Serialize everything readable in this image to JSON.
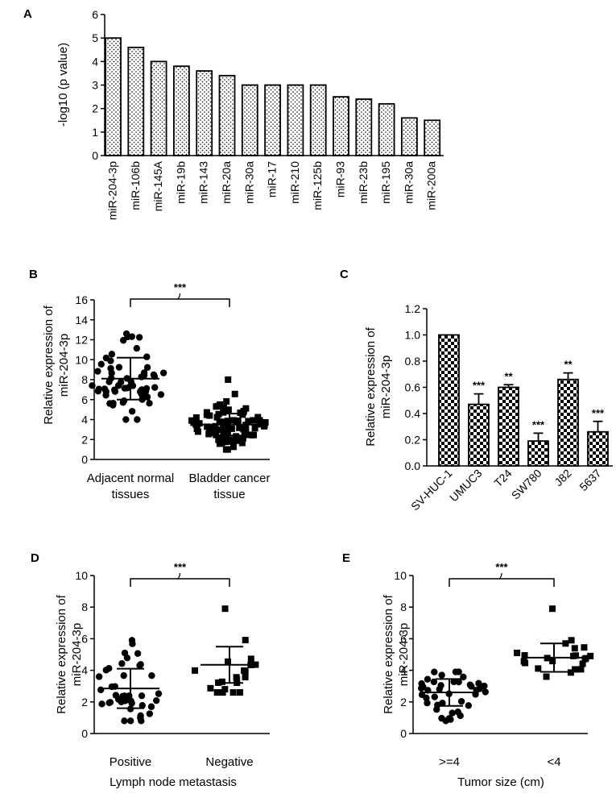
{
  "colors": {
    "ink": "#000000",
    "background": "#ffffff"
  },
  "chart_data": [
    {
      "panel": "A",
      "type": "bar",
      "fill_pattern": "dots",
      "ylabel": "-log10 (p value)",
      "ylim": [
        0,
        6
      ],
      "yticks": [
        0,
        1,
        2,
        3,
        4,
        5,
        6
      ],
      "categories": [
        "miR-204-3p",
        "miR-106b",
        "miR-145A",
        "miR-19b",
        "miR-143",
        "miR-20a",
        "miR-30a",
        "miR-17",
        "miR-210",
        "miR-125b",
        "miR-93",
        "miR-23b",
        "miR-195",
        "miR-30a",
        "miR-200a"
      ],
      "values": [
        5.0,
        4.6,
        4.0,
        3.8,
        3.6,
        3.4,
        3.0,
        3.0,
        3.0,
        3.0,
        2.5,
        2.4,
        2.2,
        1.6,
        1.5
      ]
    },
    {
      "panel": "B",
      "type": "scatter",
      "ylabel": [
        "Relative expression of",
        "miR-204-3p"
      ],
      "ylim": [
        0,
        16
      ],
      "yticks": [
        0,
        2,
        4,
        6,
        8,
        10,
        12,
        14,
        16
      ],
      "significance": "***",
      "groups": [
        {
          "label": [
            "Adjacent normal",
            "tissues"
          ],
          "marker": "circle",
          "n": 60,
          "mean": 8.1,
          "sd": 2.1,
          "min": 4.0,
          "max": 12.6
        },
        {
          "label": [
            "Bladder cancer",
            "tissue"
          ],
          "marker": "square",
          "n": 90,
          "mean": 3.5,
          "sd": 1.1,
          "min": 1.0,
          "max": 8.0
        }
      ]
    },
    {
      "panel": "C",
      "type": "bar",
      "fill_pattern": "checker",
      "ylabel": [
        "Relative expression of",
        "miR-204-3p"
      ],
      "ylim": [
        0,
        1.2
      ],
      "yticks": [
        "0.0",
        "0.2",
        "0.4",
        "0.6",
        "0.8",
        "1.0",
        "1.2"
      ],
      "categories": [
        "SV-HUC-1",
        "UMUC3",
        "T24",
        "SW780",
        "J82",
        "5637"
      ],
      "values": [
        1.0,
        0.47,
        0.6,
        0.19,
        0.66,
        0.26
      ],
      "errors": [
        0.0,
        0.08,
        0.02,
        0.06,
        0.05,
        0.08
      ],
      "annotations": [
        "",
        "***",
        "**",
        "***",
        "**",
        "***"
      ]
    },
    {
      "panel": "D",
      "type": "scatter",
      "ylabel": [
        "Relative expression of",
        "miR-204-3p"
      ],
      "xlabel": "Lymph node metastasis",
      "ylim": [
        0,
        10
      ],
      "yticks": [
        0,
        2,
        4,
        6,
        8,
        10
      ],
      "significance": "***",
      "groups": [
        {
          "label": "Positive",
          "marker": "circle",
          "n": 40,
          "mean": 2.85,
          "sd": 1.25,
          "min": 0.8,
          "max": 5.9
        },
        {
          "label": "Negative",
          "marker": "square",
          "n": 22,
          "mean": 4.35,
          "sd": 1.15,
          "min": 2.6,
          "max": 7.9
        }
      ]
    },
    {
      "panel": "E",
      "type": "scatter",
      "ylabel": [
        "Relative expression of",
        "miR-204-3p"
      ],
      "xlabel": "Tumor size (cm)",
      "ylim": [
        0,
        10
      ],
      "yticks": [
        0,
        2,
        4,
        6,
        8,
        10
      ],
      "significance": "***",
      "groups": [
        {
          "label": ">=4",
          "marker": "circle",
          "n": 40,
          "mean": 2.6,
          "sd": 0.85,
          "min": 0.8,
          "max": 3.9
        },
        {
          "label": "<4",
          "marker": "square",
          "n": 22,
          "mean": 4.8,
          "sd": 0.9,
          "min": 3.6,
          "max": 7.9
        }
      ]
    }
  ]
}
